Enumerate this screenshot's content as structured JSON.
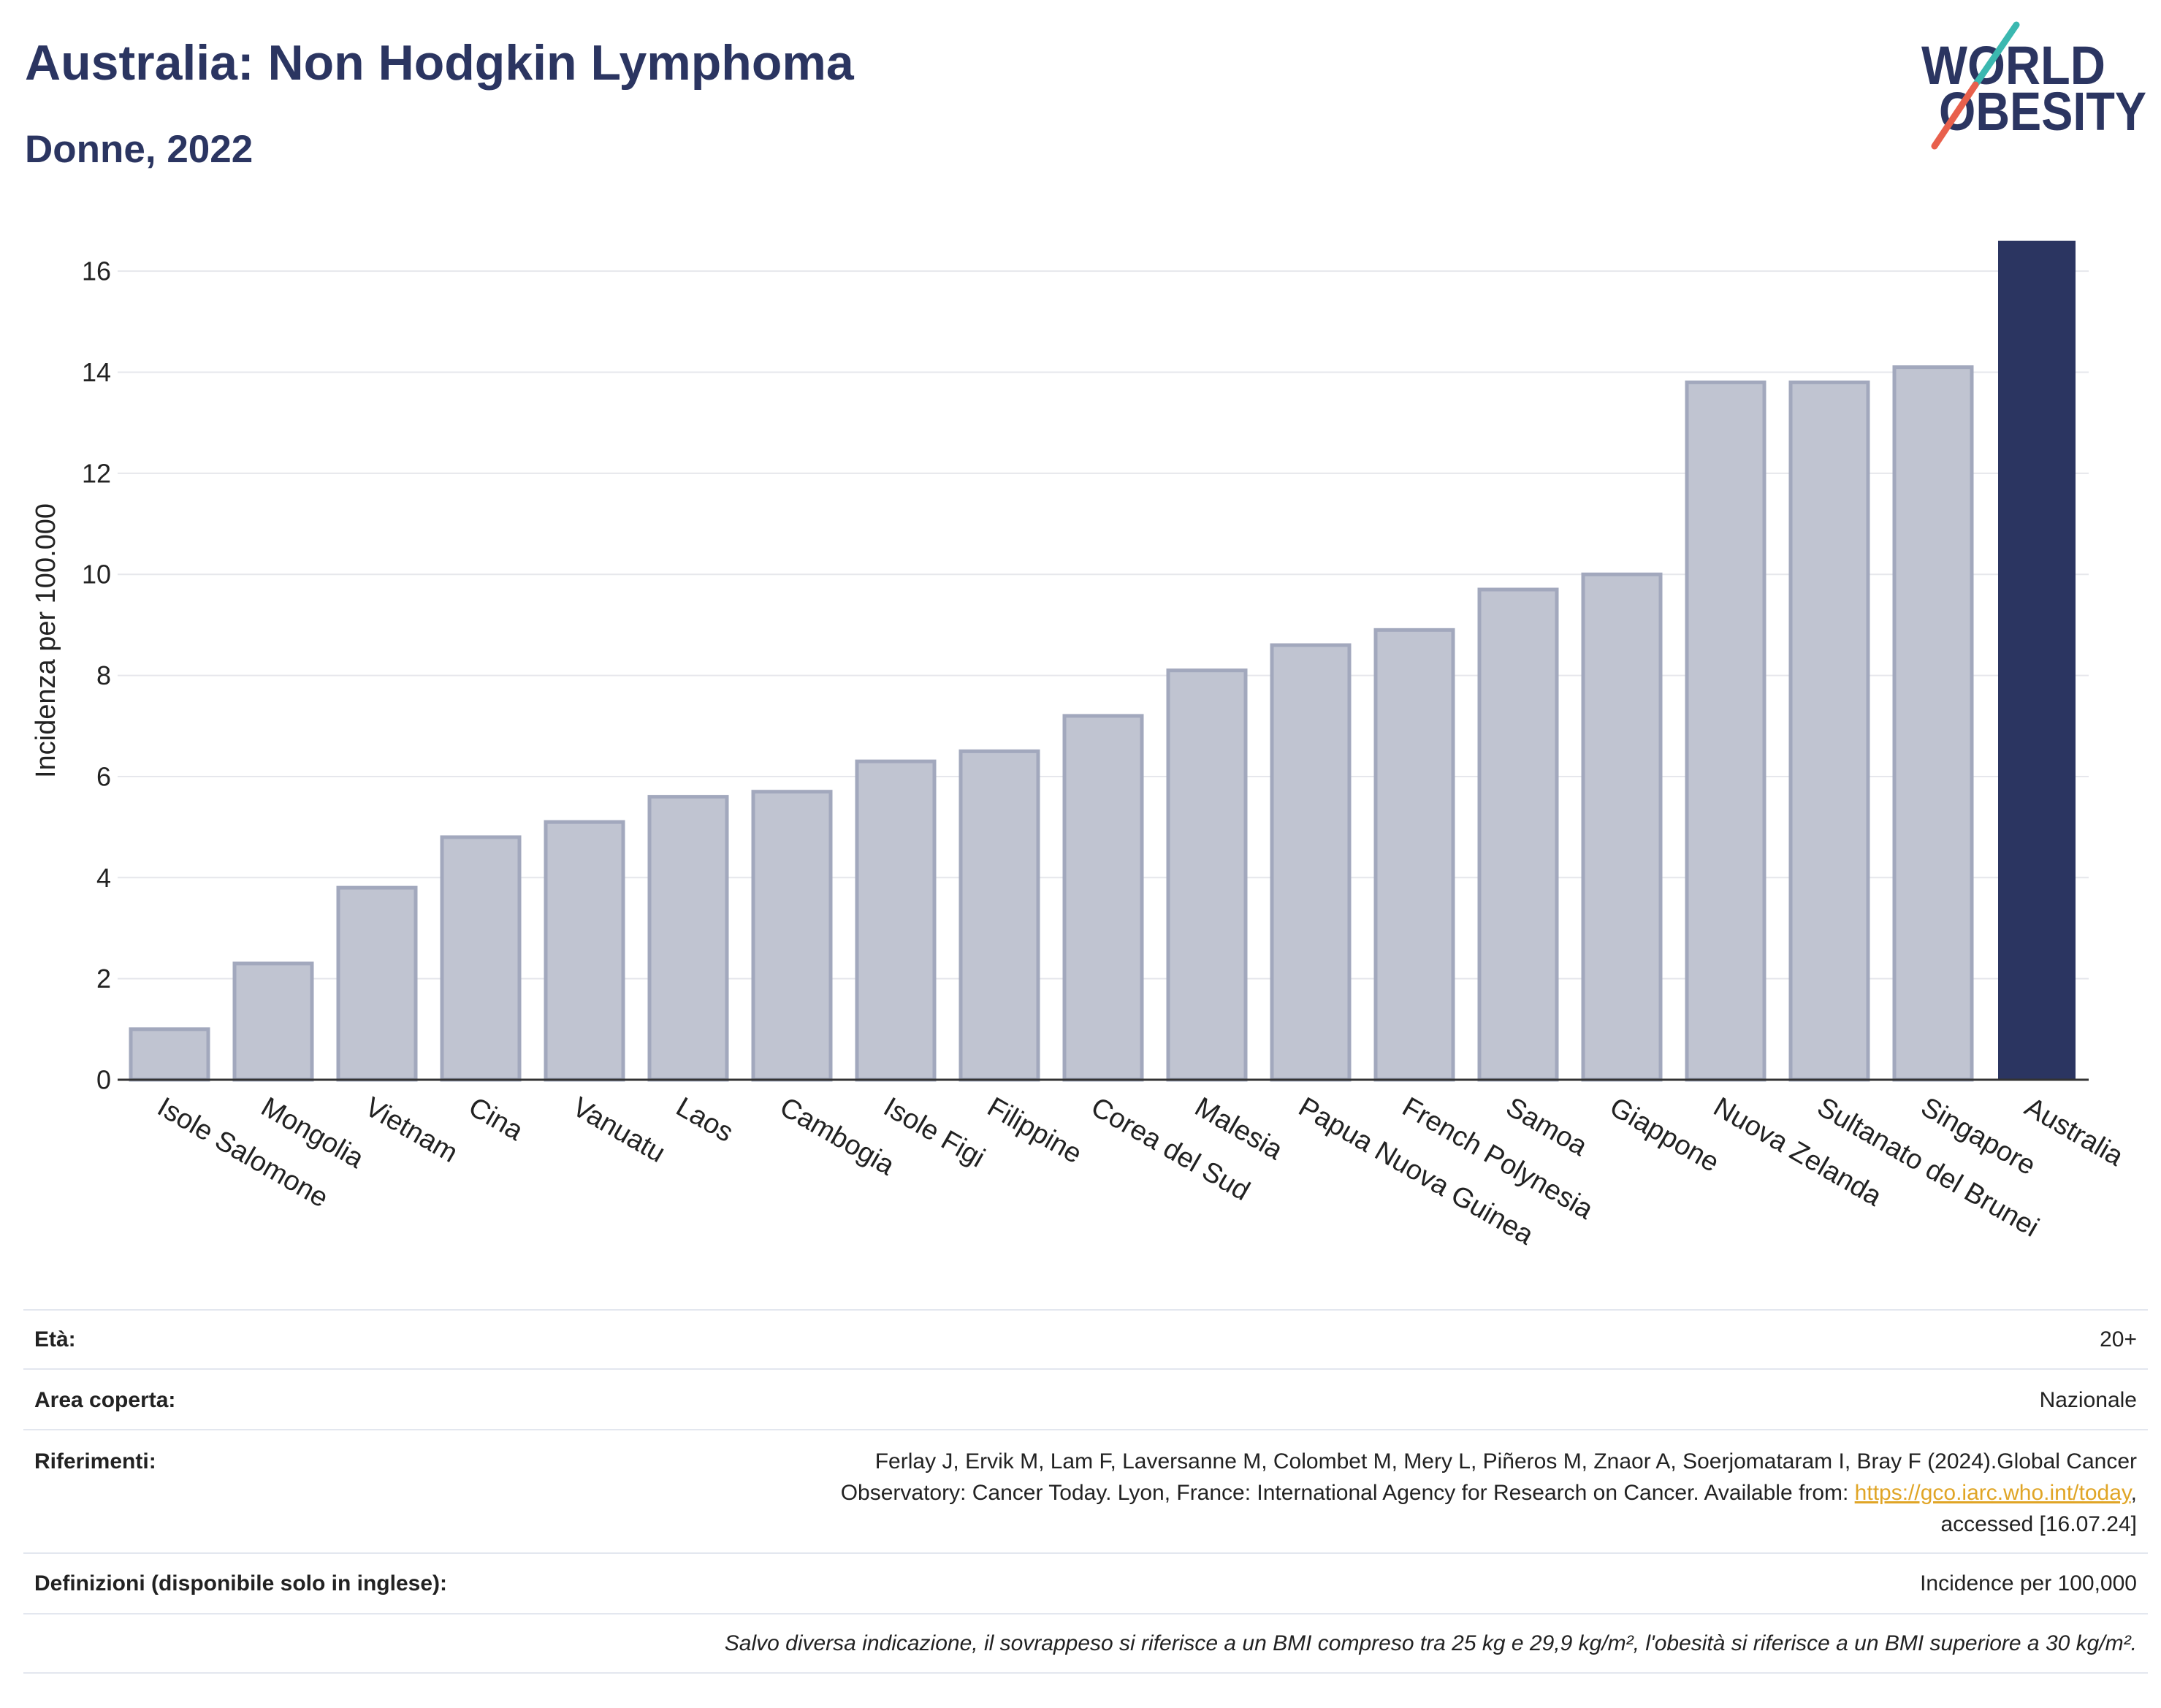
{
  "title": "Australia: Non Hodgkin Lymphoma",
  "subtitle": "Donne, 2022",
  "logo": {
    "line1": "WORLD",
    "line2": "OBESITY"
  },
  "colors": {
    "title": "#2b3561",
    "bar": "#c0c4d1",
    "bar_border": "#a2a8bd",
    "highlight": "#2b3561",
    "link": "#e0a526",
    "logo_teal": "#3bb8b0",
    "logo_coral": "#e8604c"
  },
  "chart_data": {
    "type": "bar",
    "categories": [
      "Isole Salomone",
      "Mongolia",
      "Vietnam",
      "Cina",
      "Vanuatu",
      "Laos",
      "Cambogia",
      "Isole Figi",
      "Filippine",
      "Corea del Sud",
      "Malesia",
      "Papua Nuova Guinea",
      "French Polynesia",
      "Samoa",
      "Giappone",
      "Nuova Zelanda",
      "Sultanato del Brunei",
      "Singapore",
      "Australia"
    ],
    "values": [
      1.0,
      2.3,
      3.8,
      4.8,
      5.1,
      5.6,
      5.7,
      6.3,
      6.5,
      7.2,
      8.1,
      8.6,
      8.9,
      9.7,
      10.0,
      13.8,
      13.8,
      14.1,
      16.6
    ],
    "highlight": "Australia",
    "xlabel": "",
    "ylabel": "Incidenza per 100.000",
    "ylim": [
      0,
      17
    ],
    "yticks": [
      0,
      2,
      4,
      6,
      8,
      10,
      12,
      14,
      16
    ],
    "grid": true
  },
  "footer": {
    "age": {
      "label": "Età:",
      "value": "20+"
    },
    "area": {
      "label": "Area coperta:",
      "value": "Nazionale"
    },
    "references": {
      "label": "Riferimenti:",
      "text": "Ferlay J, Ervik M, Lam F, Laversanne M, Colombet M, Mery L, Piñeros M, Znaor A, Soerjomataram I, Bray F (2024).Global Cancer\nObservatory: Cancer Today. Lyon, France: International Agency for Research on Cancer. Available from: ",
      "link": "https://gco.iarc.who.int/today",
      "suffix": ",\naccessed [16.07.24]"
    },
    "definitions": {
      "label": "Definizioni (disponibile solo in inglese):",
      "value": "Incidence per 100,000"
    },
    "note": "Salvo diversa indicazione, il sovrappeso si riferisce a un BMI compreso tra 25 kg e 29,9 kg/m², l'obesità si riferisce a un BMI superiore a 30 kg/m²."
  }
}
